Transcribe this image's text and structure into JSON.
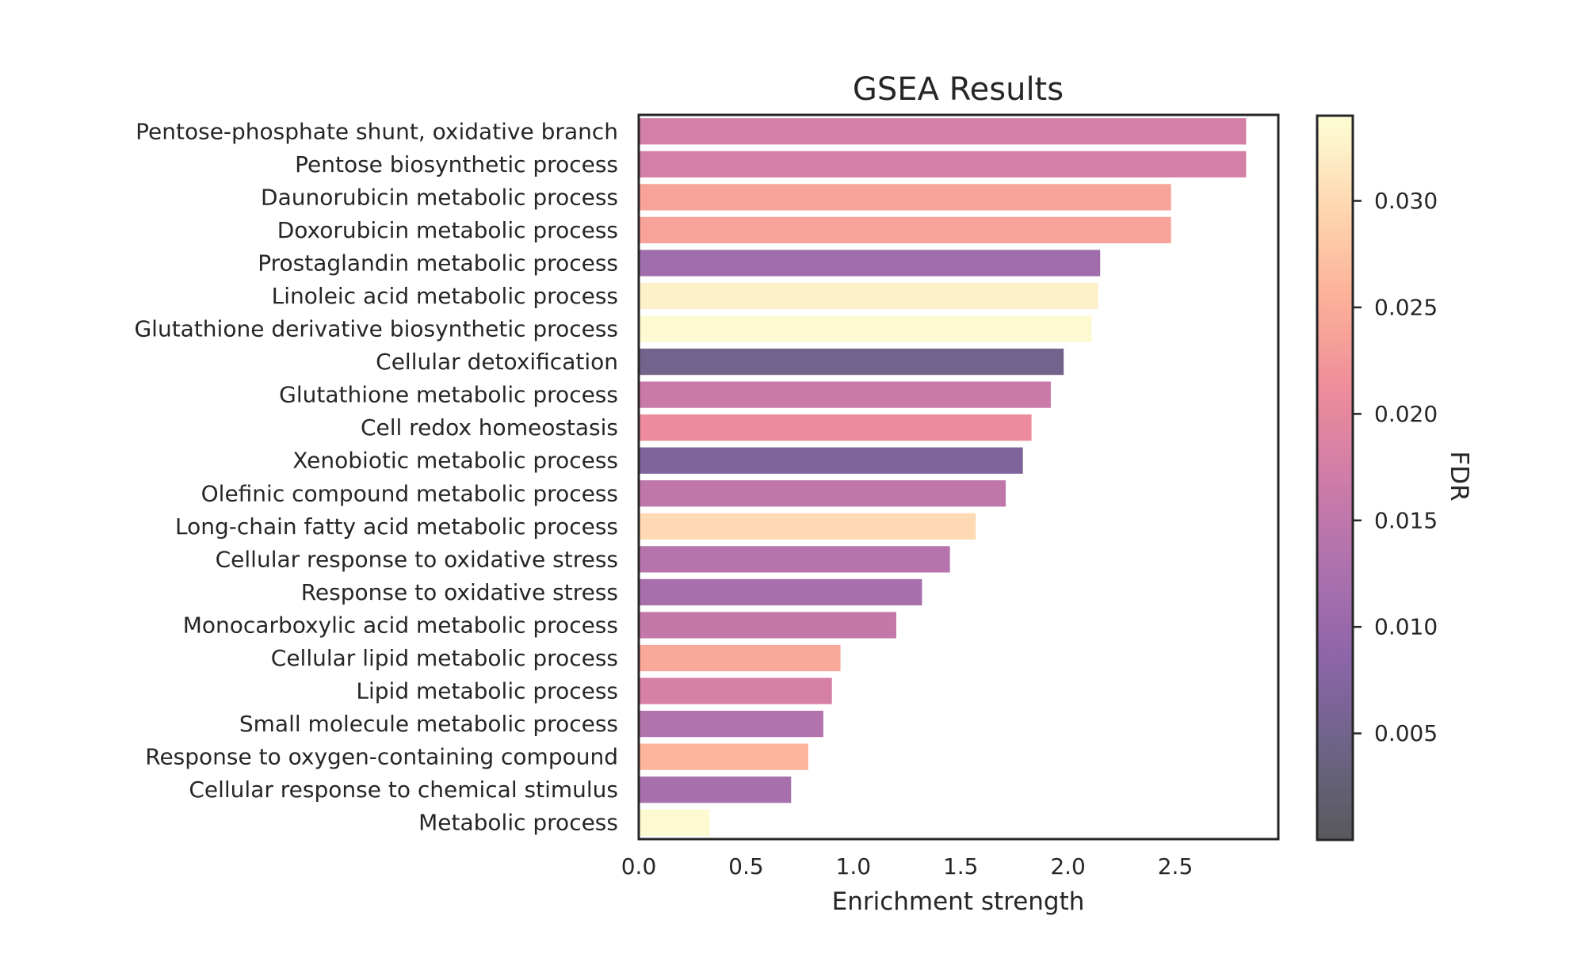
{
  "chart_data": {
    "type": "bar",
    "orientation": "horizontal",
    "title": "GSEA Results",
    "xlabel": "Enrichment strength",
    "ylabel": "",
    "xlim": [
      0,
      2.98
    ],
    "xticks": [
      "0.0",
      "0.5",
      "1.0",
      "1.5",
      "2.0",
      "2.5"
    ],
    "grid": false,
    "categories": [
      "Pentose-phosphate shunt, oxidative branch",
      "Pentose biosynthetic process",
      "Daunorubicin metabolic process",
      "Doxorubicin metabolic process",
      "Prostaglandin metabolic process",
      "Linoleic acid metabolic process",
      "Glutathione derivative biosynthetic process",
      "Cellular detoxification",
      "Glutathione metabolic process",
      "Cell redox homeostasis",
      "Xenobiotic metabolic process",
      "Olefinic compound metabolic process",
      "Long-chain fatty acid metabolic process",
      "Cellular response to oxidative stress",
      "Response to oxidative stress",
      "Monocarboxylic acid metabolic process",
      "Cellular lipid metabolic process",
      "Lipid metabolic process",
      "Small molecule metabolic process",
      "Response to oxygen-containing compound",
      "Cellular response to chemical stimulus",
      "Metabolic process"
    ],
    "values": [
      2.83,
      2.83,
      2.48,
      2.48,
      2.15,
      2.14,
      2.11,
      1.98,
      1.92,
      1.83,
      1.79,
      1.71,
      1.57,
      1.45,
      1.32,
      1.2,
      0.94,
      0.9,
      0.86,
      0.79,
      0.71,
      0.33
    ],
    "fdr": [
      0.0177,
      0.0177,
      0.0238,
      0.0238,
      0.011,
      0.0325,
      0.0335,
      0.005,
      0.0163,
      0.0208,
      0.0067,
      0.015,
      0.03,
      0.014,
      0.012,
      0.0155,
      0.0245,
      0.018,
      0.0135,
      0.026,
      0.012,
      0.0335
    ],
    "colorbar": {
      "label": "FDR",
      "min": 0.0,
      "max": 0.034,
      "ticks": [
        "0.005",
        "0.010",
        "0.015",
        "0.020",
        "0.025",
        "0.030"
      ],
      "colormap": "magma",
      "alpha": 0.65
    },
    "colors": {
      "axis": "#262626",
      "text": "#262626",
      "background": "#ffffff"
    }
  }
}
